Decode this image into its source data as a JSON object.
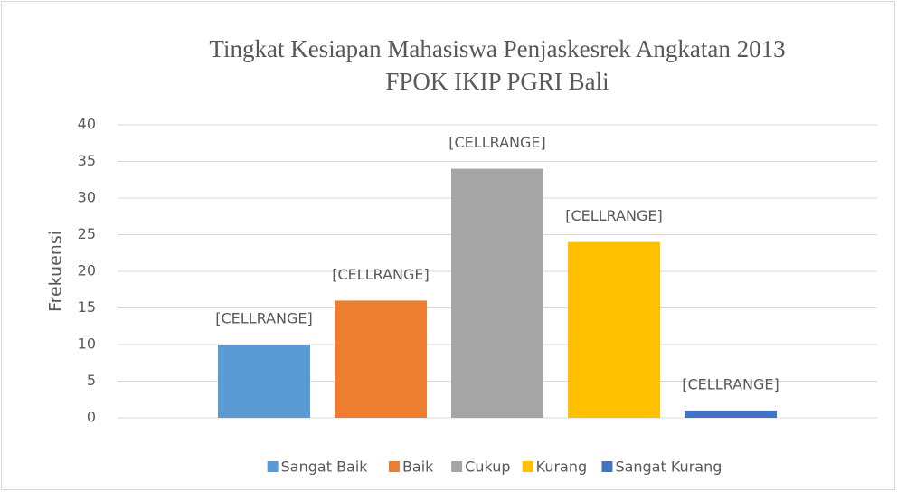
{
  "chart_data": {
    "type": "bar",
    "title": [
      "Tingkat Kesiapan Mahasiswa Penjaskesrek Angkatan 2013",
      "FPOK IKIP PGRI Bali"
    ],
    "y_label": "Frekuensi",
    "categories": [
      null
    ],
    "series": [
      {
        "name": "Sangat Baik",
        "color": "#5b9bd5",
        "values": [
          10
        ],
        "value_labels": [
          "[CELLRANGE]"
        ]
      },
      {
        "name": "Baik",
        "color": "#ed7d31",
        "values": [
          16
        ],
        "value_labels": [
          "[CELLRANGE]"
        ]
      },
      {
        "name": "Cukup",
        "color": "#a5a5a5",
        "values": [
          34
        ],
        "value_labels": [
          "[CELLRANGE]"
        ]
      },
      {
        "name": "Kurang",
        "color": "#ffc000",
        "values": [
          24
        ],
        "value_labels": [
          "[CELLRANGE]"
        ]
      },
      {
        "name": "Sangat Kurang",
        "color": "#4472c4",
        "values": [
          1
        ],
        "value_labels": [
          "[CELLRANGE]"
        ]
      }
    ],
    "ylim": [
      0,
      40
    ],
    "yticks": [
      0,
      5,
      10,
      15,
      20,
      25,
      30,
      35,
      40
    ],
    "grid": true,
    "legend": "bottom"
  }
}
